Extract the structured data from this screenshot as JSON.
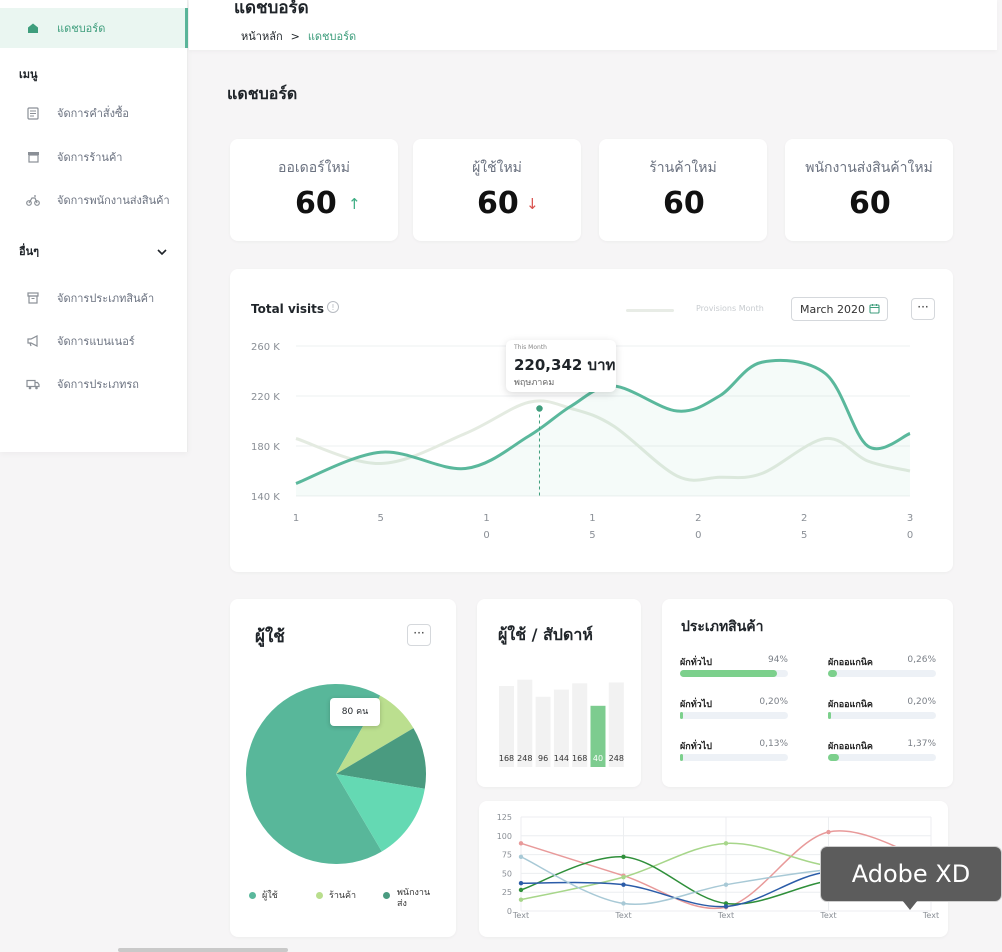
{
  "sidebar": {
    "items": [
      {
        "label": "แดชบอร์ด",
        "icon": "home-icon",
        "active": true
      },
      {
        "label": "จัดการคำสั่งซื้อ",
        "icon": "order-list-icon"
      },
      {
        "label": "จัดการร้านค้า",
        "icon": "store-icon"
      },
      {
        "label": "จัดการพนักงานส่งสินค้า",
        "icon": "motorbike-icon"
      },
      {
        "label": "จัดการประเภทสินค้า",
        "icon": "archive-box-icon"
      },
      {
        "label": "จัดการแบนเนอร์",
        "icon": "megaphone-icon"
      },
      {
        "label": "จัดการประเภทรถ",
        "icon": "truck-icon"
      }
    ],
    "section_menu": "เมนู",
    "section_other": "อื่นๆ"
  },
  "header": {
    "title": "แดชบอร์ด",
    "breadcrumb_home": "หน้าหลัก",
    "breadcrumb_sep": ">",
    "breadcrumb_current": "แดชบอร์ด"
  },
  "page_title": "แดชบอร์ด",
  "stats": [
    {
      "label": "ออเดอร์ใหม่",
      "value": "60",
      "trend": "↑",
      "trend_color": "#3fae84"
    },
    {
      "label": "ผู้ใช้ใหม่",
      "value": "60",
      "trend": "↓",
      "trend_color": "#d9534f"
    },
    {
      "label": "ร้านค้าใหม่",
      "value": "60"
    },
    {
      "label": "พนักงานส่งสินค้าใหม่",
      "value": "60"
    }
  ],
  "visits": {
    "title": "Total visits",
    "legend_label": "Provisions Month",
    "date_select": "March 2020",
    "tooltip_small": "This Month",
    "tooltip_value": "220,342 บาท",
    "tooltip_month": "พฤษภาคม",
    "more_label": "···"
  },
  "users_card": {
    "title": "ผู้ใช้",
    "more_label": "···",
    "pie_tooltip": "80 คน",
    "legend": [
      {
        "label": "ผู้ใช้",
        "color": "#5ab89c"
      },
      {
        "label": "ร้านค้า",
        "color": "#b9de8d"
      },
      {
        "label": "พนักงาน\nส่ง",
        "color": "#4a9b80"
      }
    ]
  },
  "week_card": {
    "title": "ผู้ใช้ / สัปดาห์"
  },
  "categories": {
    "title": "ประเภทสินค้า",
    "items": [
      {
        "name": "ผักทั่วไป",
        "pct": "94%",
        "fill": 0.9
      },
      {
        "name": "ผักออแกนิค",
        "pct": "0,26%",
        "fill": 0.08
      },
      {
        "name": "ผักทั่วไป",
        "pct": "0,20%",
        "fill": 0.03
      },
      {
        "name": "ผักออแกนิค",
        "pct": "0,20%",
        "fill": 0.03
      },
      {
        "name": "ผักทั่วไป",
        "pct": "0,13%",
        "fill": 0.02
      },
      {
        "name": "ผักออแกนิค",
        "pct": "1,37%",
        "fill": 0.1
      }
    ]
  },
  "tooltip_app": "Adobe XD",
  "chart_data": [
    {
      "type": "line",
      "title": "Total visits",
      "x_ticks": [
        "1",
        "5",
        "1\n0",
        "1\n5",
        "2\n0",
        "2\n5",
        "3\n0"
      ],
      "y_ticks": [
        "260 K",
        "220 K",
        "180 K",
        "140 K"
      ],
      "ylim": [
        140,
        260
      ],
      "xlim": [
        1,
        30
      ],
      "series": [
        {
          "color": "#5ab89c",
          "x": [
            1,
            5,
            9,
            12,
            14,
            16,
            19,
            21,
            23,
            26,
            28,
            30
          ],
          "y": [
            150,
            175,
            162,
            188,
            212,
            228,
            208,
            220,
            247,
            238,
            180,
            190
          ]
        },
        {
          "name": "Provisions Month",
          "color": "#e4ebe1",
          "x": [
            1,
            5,
            9,
            12,
            14,
            16,
            19,
            21,
            23,
            26,
            28,
            30
          ],
          "y": [
            186,
            166,
            190,
            215,
            210,
            196,
            156,
            155,
            158,
            186,
            168,
            160
          ]
        }
      ],
      "marker": {
        "x": 12.5,
        "y": 210
      }
    },
    {
      "type": "pie",
      "values": [
        66.67,
        8.33,
        11.11,
        13.89
      ],
      "colors": [
        "#58b79a",
        "#bbdf8f",
        "#4a9b80",
        "#64d9b3"
      ]
    },
    {
      "type": "bar",
      "values": [
        168,
        248,
        96,
        144,
        168,
        40,
        248
      ],
      "highlight_index": 5,
      "relative_heights": [
        0.9,
        0.97,
        0.78,
        0.86,
        0.93,
        0.68,
        0.94
      ]
    },
    {
      "type": "line",
      "categories": [
        "Text",
        "Text",
        "Text",
        "Text",
        "Text"
      ],
      "y_ticks": [
        "125",
        "100",
        "75",
        "50",
        "25",
        "0"
      ],
      "ylim": [
        0,
        125
      ],
      "series": [
        {
          "color": "#e89a9a",
          "values": [
            90,
            47,
            5,
            105,
            65
          ]
        },
        {
          "color": "#a7d68a",
          "values": [
            15,
            45,
            90,
            60,
            50
          ]
        },
        {
          "color": "#2f8f3a",
          "values": [
            28,
            72,
            10,
            40,
            55
          ]
        },
        {
          "color": "#2b5ca8",
          "values": [
            37,
            35,
            6,
            52,
            30
          ]
        },
        {
          "color": "#a8c9d6",
          "values": [
            72,
            10,
            35,
            55,
            62
          ]
        }
      ]
    }
  ]
}
